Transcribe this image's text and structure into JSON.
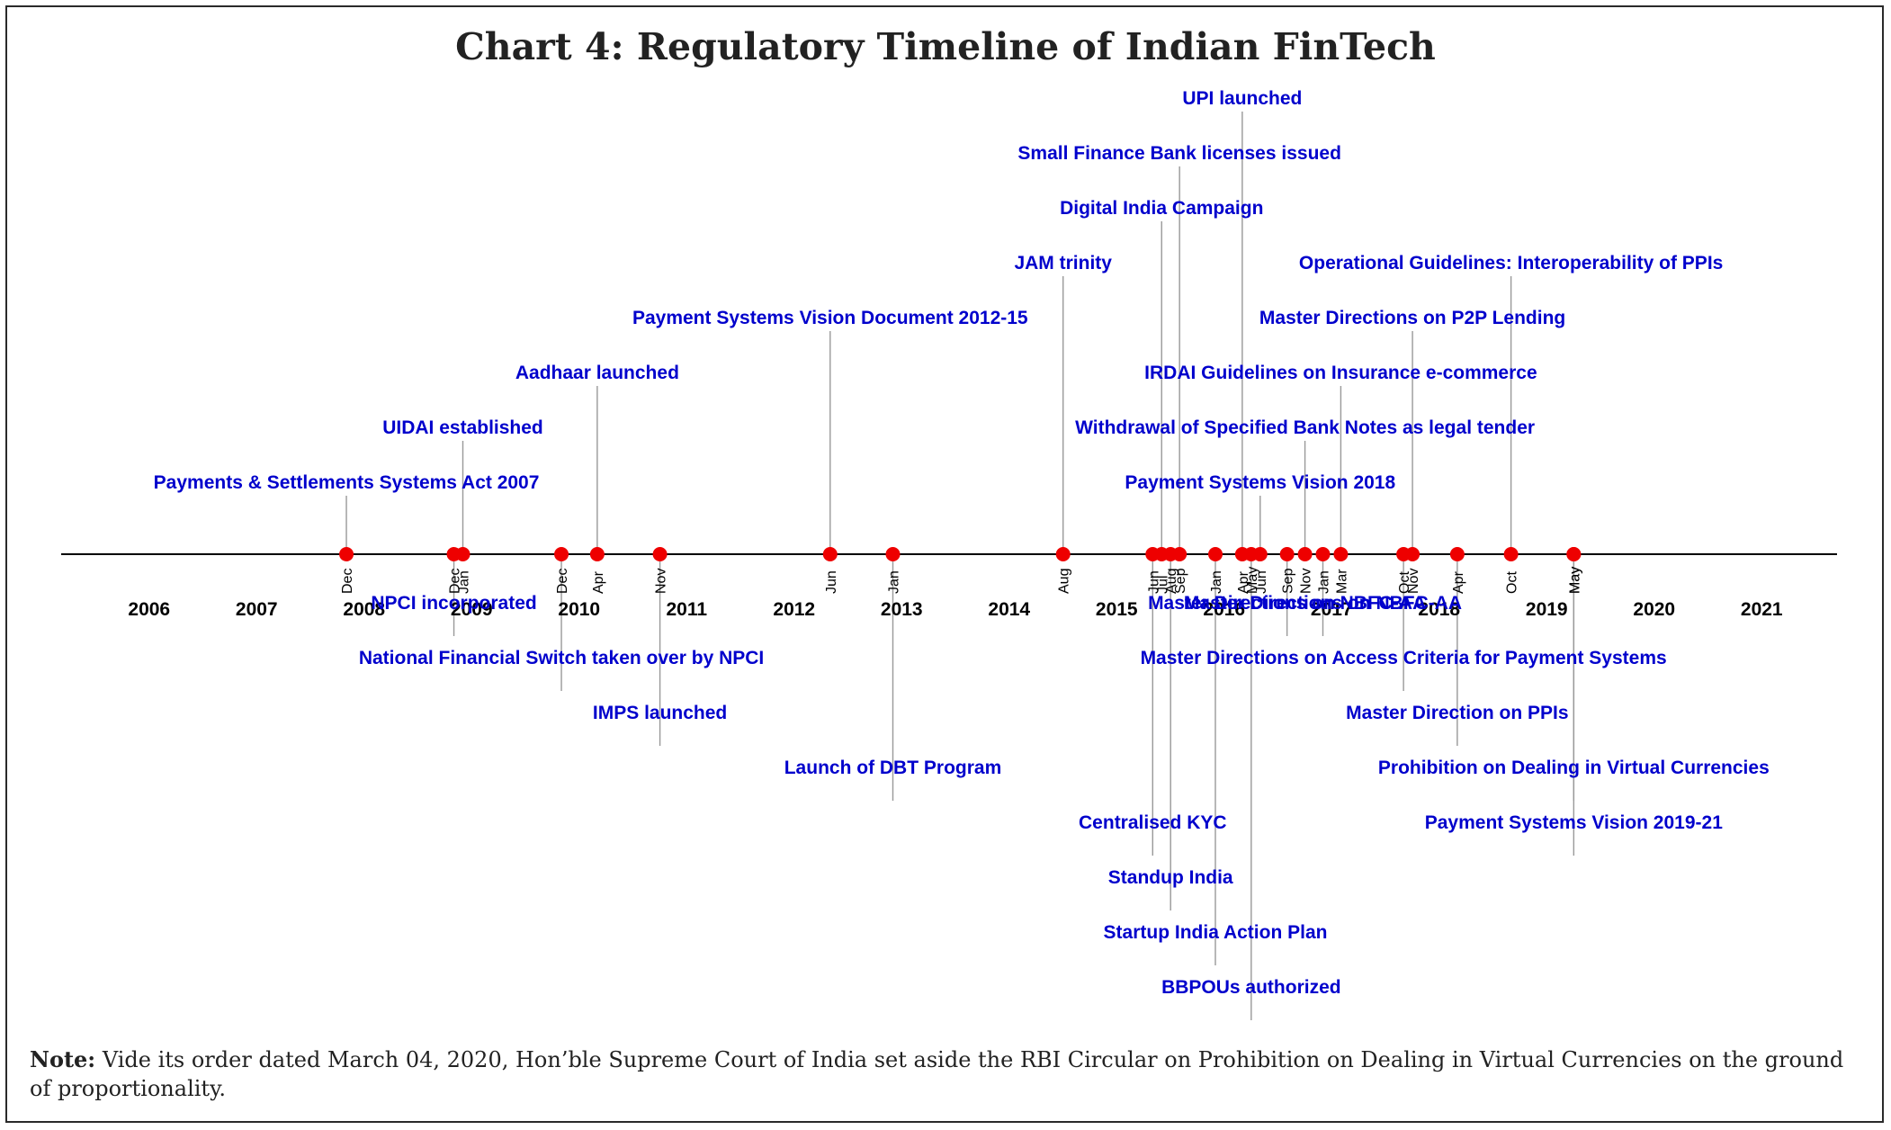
{
  "title": "Chart 4: Regulatory Timeline of Indian FinTech",
  "note": {
    "label": "Note:",
    "text": "Vide its order dated March 04, 2020, Hon’ble Supreme Court of India set aside the RBI Circular on Prohibition on Dealing in Virtual Currencies on the ground of proportionality."
  },
  "colors": {
    "label": "#0000cc",
    "marker": "#ee0000",
    "axis": "#000000",
    "connector": "#999999"
  },
  "chart_data": {
    "type": "timeline",
    "years": [
      "2006",
      "2007",
      "2008",
      "2009",
      "2010",
      "2011",
      "2012",
      "2013",
      "2014",
      "2015",
      "2016",
      "2017",
      "2018",
      "2019",
      "2020",
      "2021"
    ],
    "events": [
      {
        "date": "2007-12",
        "month": "Dec",
        "label": "Payments & Settlements Systems Act 2007",
        "side": "above",
        "level": 1
      },
      {
        "date": "2008-12",
        "month": "Dec",
        "label": "NPCI incorporated",
        "side": "below",
        "level": 1
      },
      {
        "date": "2009-01",
        "month": "Jan",
        "label": "UIDAI established",
        "side": "above",
        "level": 2
      },
      {
        "date": "2009-12",
        "month": "Dec",
        "label": "National Financial Switch taken over by NPCI",
        "side": "below",
        "level": 2
      },
      {
        "date": "2010-04",
        "month": "Apr",
        "label": "Aadhaar launched",
        "side": "above",
        "level": 3
      },
      {
        "date": "2010-11",
        "month": "Nov",
        "label": "IMPS launched",
        "side": "below",
        "level": 3
      },
      {
        "date": "2012-06",
        "month": "Jun",
        "label": "Payment Systems Vision Document 2012-15",
        "side": "above",
        "level": 4
      },
      {
        "date": "2013-01",
        "month": "Jan",
        "label": "Launch of DBT Program",
        "side": "below",
        "level": 4
      },
      {
        "date": "2014-08",
        "month": "Aug",
        "label": "JAM trinity",
        "side": "above",
        "level": 5
      },
      {
        "date": "2015-06",
        "month": "Jun",
        "label": "Centralised KYC",
        "side": "below",
        "level": 5
      },
      {
        "date": "2015-07",
        "month": "Jul",
        "label": "Digital India Campaign",
        "side": "above",
        "level": 6
      },
      {
        "date": "2015-08",
        "month": "Aug",
        "label": "Standup India",
        "side": "below",
        "level": 6
      },
      {
        "date": "2015-09",
        "month": "Sep",
        "label": "Small Finance Bank licenses issued",
        "side": "above",
        "level": 7
      },
      {
        "date": "2016-01",
        "month": "Jan",
        "label": "Startup India Action Plan",
        "side": "below",
        "level": 7
      },
      {
        "date": "2016-04",
        "month": "Apr",
        "label": "UPI launched",
        "side": "above",
        "level": 8
      },
      {
        "date": "2016-05",
        "month": "May",
        "label": "BBPOUs authorized",
        "side": "below",
        "level": 8
      },
      {
        "date": "2016-06",
        "month": "Jun",
        "label": "Payment Systems Vision 2018",
        "side": "above",
        "level": 1
      },
      {
        "date": "2016-09",
        "month": "Sep",
        "label": "Master Directions on NBFC-AA",
        "side": "below",
        "level": 1
      },
      {
        "date": "2016-11",
        "month": "Nov",
        "label": "Withdrawal of Specified Bank Notes as legal tender",
        "side": "above",
        "level": 2
      },
      {
        "date": "2017-01",
        "month": "Jan",
        "label": "Master Directions on NBFC-AA",
        "side": "below",
        "level": 1
      },
      {
        "date": "2017-03",
        "month": "Mar",
        "label": "IRDAI Guidelines on Insurance e-commerce",
        "side": "above",
        "level": 3
      },
      {
        "date": "2017-10",
        "month": "Oct",
        "label": "Master Directions on Access Criteria for Payment Systems",
        "side": "below",
        "level": 2
      },
      {
        "date": "2017-11",
        "month": "Nov",
        "label": "Master Directions on P2P Lending",
        "side": "above",
        "level": 4
      },
      {
        "date": "2018-04",
        "month": "Apr",
        "label": "Master Direction on PPIs",
        "side": "below",
        "level": 3
      },
      {
        "date": "2018-10",
        "month": "Oct",
        "label": "Operational Guidelines: Interoperability of PPIs",
        "side": "above",
        "level": 5
      },
      {
        "date": "2019-05",
        "month": "May",
        "label": "Prohibition on Dealing in Virtual Currencies",
        "side": "below",
        "level": 4
      },
      {
        "date": "2019-05",
        "month": "May",
        "label": "Payment Systems Vision 2019-21",
        "side": "below",
        "level": 5
      }
    ]
  }
}
